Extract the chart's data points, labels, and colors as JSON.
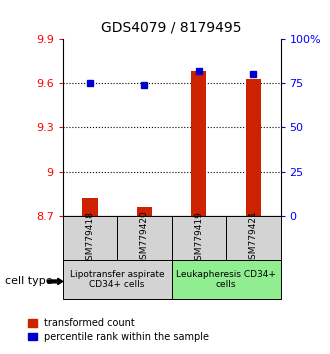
{
  "title": "GDS4079 / 8179495",
  "samples": [
    "GSM779418",
    "GSM779420",
    "GSM779419",
    "GSM779421"
  ],
  "red_values": [
    8.82,
    8.76,
    9.68,
    9.63
  ],
  "blue_values": [
    75.0,
    74.0,
    82.0,
    80.0
  ],
  "ylim_left": [
    8.7,
    9.9
  ],
  "ylim_right": [
    0,
    100
  ],
  "yticks_left": [
    8.7,
    9.0,
    9.3,
    9.6,
    9.9
  ],
  "ytick_labels_left": [
    "8.7",
    "9",
    "9.3",
    "9.6",
    "9.9"
  ],
  "yticks_right": [
    0,
    25,
    50,
    75,
    100
  ],
  "ytick_labels_right": [
    "0",
    "25",
    "50",
    "75",
    "100%"
  ],
  "gridlines_at": [
    9.0,
    9.3,
    9.6
  ],
  "group1_samples": [
    0,
    1
  ],
  "group2_samples": [
    2,
    3
  ],
  "group1_label": "Lipotransfer aspirate\nCD34+ cells",
  "group2_label": "Leukapheresis CD34+\ncells",
  "group1_color": "#d3d3d3",
  "group2_color": "#90ee90",
  "cell_type_label": "cell type",
  "legend_red": "transformed count",
  "legend_blue": "percentile rank within the sample",
  "bar_color": "#cc2200",
  "dot_color": "#0000cc",
  "bar_width": 0.28
}
